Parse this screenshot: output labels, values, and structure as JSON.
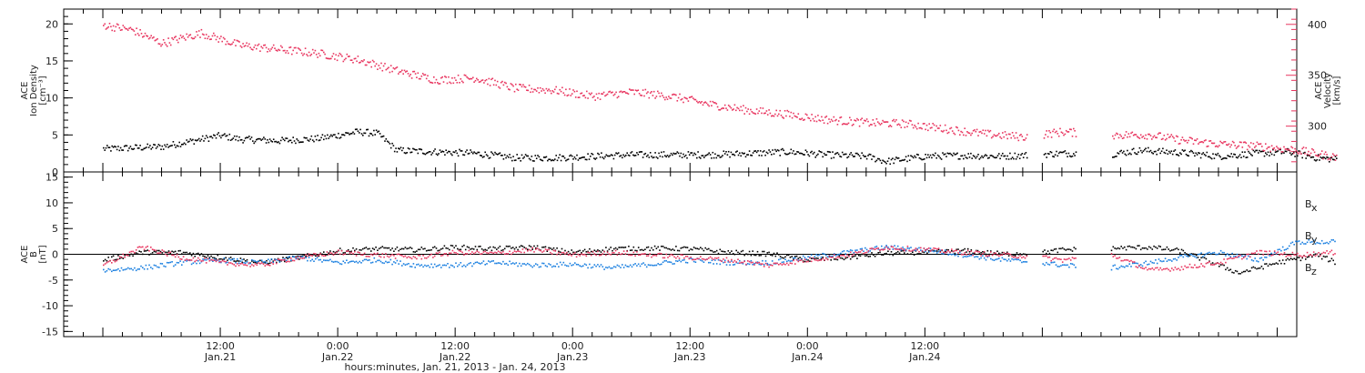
{
  "chart_data": [
    {
      "type": "scatter",
      "panel": "top",
      "ylabel": {
        "line1": "ACE",
        "line2": "Ion Density",
        "line3": "[cm⁻³]"
      },
      "ylim": [
        0,
        22
      ],
      "yticks": [
        "0",
        "5",
        "10",
        "15",
        "20"
      ],
      "y2label": {
        "line1": "ACE",
        "line2": "Velocity",
        "line3": "[km/s]"
      },
      "y2lim": [
        255,
        415
      ],
      "y2ticks": [
        "300",
        "350",
        "400"
      ],
      "series": [
        {
          "axis": "left",
          "color": "#000000",
          "points": [
            [
              0,
              3.2
            ],
            [
              6,
              3.5
            ],
            [
              12,
              5
            ],
            [
              14,
              4.5
            ],
            [
              18,
              4.3
            ],
            [
              22,
              4.6
            ],
            [
              26,
              5.5
            ],
            [
              28,
              5.3
            ],
            [
              30,
              3.0
            ],
            [
              34,
              2.8
            ],
            [
              38,
              2.6
            ],
            [
              42,
              2.0
            ],
            [
              46,
              2.0
            ],
            [
              50,
              2.2
            ],
            [
              54,
              2.4
            ],
            [
              58,
              2.4
            ],
            [
              62,
              2.4
            ],
            [
              66,
              2.6
            ],
            [
              70,
              2.8
            ],
            [
              74,
              2.4
            ],
            [
              78,
              2.2
            ],
            [
              80,
              1.5
            ],
            [
              84,
              2.2
            ],
            [
              88,
              2.3
            ],
            [
              92,
              2.2
            ],
            [
              98,
              2.6
            ],
            [
              103,
              2.5
            ],
            [
              106,
              3.0
            ],
            [
              110,
              2.7
            ],
            [
              114,
              2.2
            ],
            [
              118,
              2.6
            ],
            [
              121,
              2.8
            ],
            [
              124,
              2.0
            ],
            [
              126,
              1.8
            ]
          ]
        },
        {
          "axis": "right",
          "color": "#e8355f",
          "points": [
            [
              0,
              400
            ],
            [
              3,
              395
            ],
            [
              6,
              382
            ],
            [
              10,
              392
            ],
            [
              14,
              380
            ],
            [
              18,
              376
            ],
            [
              22,
              372
            ],
            [
              26,
              366
            ],
            [
              30,
              355
            ],
            [
              34,
              346
            ],
            [
              38,
              348
            ],
            [
              42,
              338
            ],
            [
              46,
              336
            ],
            [
              50,
              330
            ],
            [
              54,
              334
            ],
            [
              58,
              330
            ],
            [
              62,
              322
            ],
            [
              66,
              316
            ],
            [
              70,
              312
            ],
            [
              74,
              307
            ],
            [
              78,
              304
            ],
            [
              82,
              303
            ],
            [
              86,
              298
            ],
            [
              90,
              293
            ],
            [
              94,
              290
            ],
            [
              98,
              295
            ],
            [
              103,
              292
            ],
            [
              107,
              292
            ],
            [
              110,
              287
            ],
            [
              114,
              283
            ],
            [
              118,
              281
            ],
            [
              122,
              277
            ],
            [
              126,
              270
            ]
          ]
        }
      ]
    },
    {
      "type": "scatter",
      "panel": "bottom",
      "ylabel": {
        "line1": "ACE",
        "line2": "B",
        "line3": "[nT]"
      },
      "ylim": [
        -16,
        16
      ],
      "yticks": [
        "-15",
        "-10",
        "-5",
        "0",
        "5",
        "10",
        "15"
      ],
      "series": [
        {
          "name": "Bx",
          "color": "#000000",
          "points": [
            [
              0,
              -1
            ],
            [
              4,
              0.5
            ],
            [
              8,
              0.5
            ],
            [
              12,
              -0.5
            ],
            [
              16,
              -1.5
            ],
            [
              20,
              -0.5
            ],
            [
              24,
              0.8
            ],
            [
              28,
              1.2
            ],
            [
              32,
              1.0
            ],
            [
              36,
              1.5
            ],
            [
              40,
              1.2
            ],
            [
              44,
              1.5
            ],
            [
              48,
              0.5
            ],
            [
              52,
              1.2
            ],
            [
              56,
              1.3
            ],
            [
              60,
              1.2
            ],
            [
              64,
              0.5
            ],
            [
              68,
              0.2
            ],
            [
              72,
              -1.0
            ],
            [
              76,
              -0.5
            ],
            [
              80,
              0.3
            ],
            [
              84,
              0.5
            ],
            [
              88,
              0.8
            ],
            [
              92,
              0.2
            ],
            [
              96,
              0.5
            ],
            [
              98,
              1.0
            ],
            [
              103,
              1.3
            ],
            [
              107,
              1.5
            ],
            [
              110,
              0.8
            ],
            [
              114,
              -2.0
            ],
            [
              116,
              -3.5
            ],
            [
              120,
              -1.5
            ],
            [
              124,
              0.0
            ],
            [
              126,
              -1.5
            ]
          ]
        },
        {
          "name": "By",
          "color": "#1a7fe0",
          "points": [
            [
              0,
              -3
            ],
            [
              4,
              -2.5
            ],
            [
              8,
              -1.5
            ],
            [
              12,
              -1.0
            ],
            [
              16,
              -1.5
            ],
            [
              20,
              -0.5
            ],
            [
              24,
              -1.5
            ],
            [
              28,
              -1.0
            ],
            [
              32,
              -2.0
            ],
            [
              36,
              -2.0
            ],
            [
              40,
              -1.5
            ],
            [
              44,
              -2.0
            ],
            [
              48,
              -1.8
            ],
            [
              52,
              -2.5
            ],
            [
              56,
              -1.8
            ],
            [
              60,
              -1.0
            ],
            [
              64,
              -1.5
            ],
            [
              68,
              -1.5
            ],
            [
              72,
              -0.5
            ],
            [
              76,
              0.5
            ],
            [
              80,
              1.5
            ],
            [
              84,
              1.0
            ],
            [
              88,
              0.0
            ],
            [
              92,
              -1.0
            ],
            [
              96,
              -1.5
            ],
            [
              98,
              -2.0
            ],
            [
              103,
              -2.5
            ],
            [
              107,
              -1.5
            ],
            [
              110,
              -0.5
            ],
            [
              114,
              0.5
            ],
            [
              118,
              -1.0
            ],
            [
              122,
              2.5
            ],
            [
              126,
              2.5
            ]
          ]
        },
        {
          "name": "Bz",
          "color": "#e8355f",
          "points": [
            [
              0,
              -2
            ],
            [
              4,
              1.5
            ],
            [
              8,
              -0.5
            ],
            [
              12,
              -1.5
            ],
            [
              16,
              -2.0
            ],
            [
              20,
              -0.5
            ],
            [
              24,
              0.5
            ],
            [
              28,
              0.0
            ],
            [
              32,
              -0.5
            ],
            [
              36,
              0.5
            ],
            [
              40,
              0.3
            ],
            [
              44,
              1.0
            ],
            [
              48,
              0.0
            ],
            [
              52,
              0.5
            ],
            [
              56,
              0.0
            ],
            [
              60,
              -0.5
            ],
            [
              64,
              -1.0
            ],
            [
              68,
              -2.0
            ],
            [
              72,
              -1.0
            ],
            [
              76,
              0.0
            ],
            [
              80,
              1.5
            ],
            [
              84,
              1.0
            ],
            [
              88,
              0.5
            ],
            [
              92,
              0.0
            ],
            [
              96,
              -0.5
            ],
            [
              98,
              -1.0
            ],
            [
              103,
              0.0
            ],
            [
              107,
              -3.0
            ],
            [
              110,
              -2.5
            ],
            [
              114,
              -1.5
            ],
            [
              118,
              0.5
            ],
            [
              122,
              0.0
            ],
            [
              126,
              0.5
            ]
          ]
        }
      ],
      "legend": [
        {
          "label": "B",
          "sub": "x",
          "color": "#000000"
        },
        {
          "label": "B",
          "sub": "y",
          "color": "#1a7fe0"
        },
        {
          "label": "B",
          "sub": "z",
          "color": "#e8355f"
        }
      ]
    }
  ],
  "x_axis": {
    "xlim_hours": [
      -4,
      122
    ],
    "xlabel": "hours:minutes, Jan. 21, 2013 - Jan. 24, 2013",
    "ticks": [
      {
        "hour": 12,
        "time": "12:00",
        "date": "Jan.21"
      },
      {
        "hour": 24,
        "time": "0:00",
        "date": "Jan.22"
      },
      {
        "hour": 36,
        "time": "12:00",
        "date": "Jan.22"
      },
      {
        "hour": 48,
        "time": "0:00",
        "date": "Jan.23"
      },
      {
        "hour": 60,
        "time": "12:00",
        "date": "Jan.23"
      },
      {
        "hour": 72,
        "time": "0:00",
        "date": "Jan.24"
      },
      {
        "hour": 84,
        "time": "12:00",
        "date": "Jan.24"
      }
    ]
  }
}
